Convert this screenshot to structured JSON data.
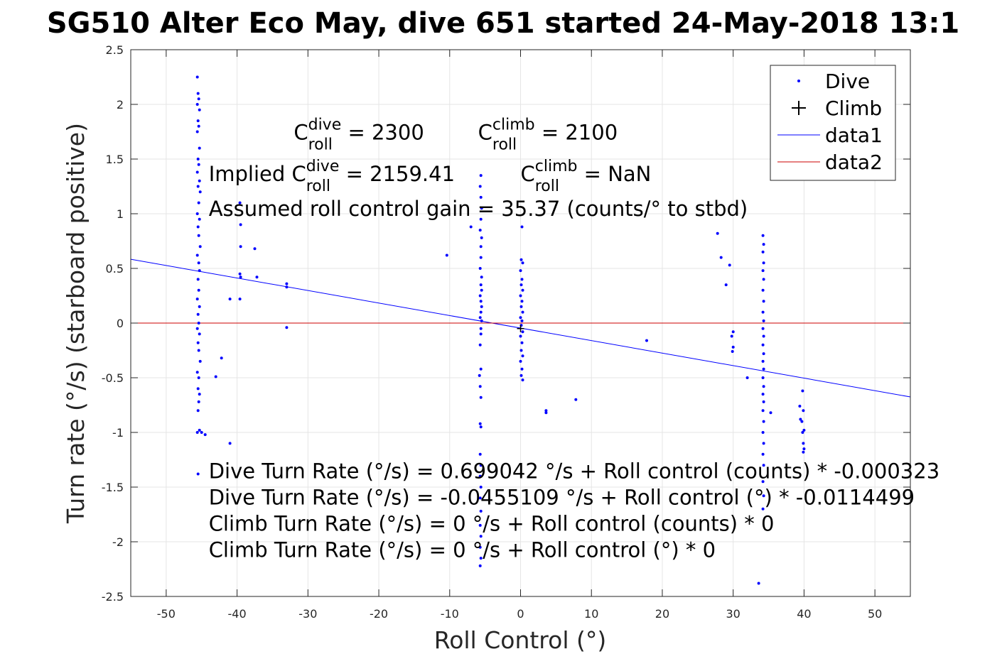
{
  "chart_data": {
    "type": "scatter",
    "title": "SG510 Alter Eco May, dive 651 started 24-May-2018 13:1",
    "xlabel": "Roll Control (°)",
    "ylabel": "Turn rate (°/s) (starboard positive)",
    "xlim": [
      -55,
      55
    ],
    "ylim": [
      -2.5,
      2.5
    ],
    "xticks": [
      -50,
      -40,
      -30,
      -20,
      -10,
      0,
      10,
      20,
      30,
      40,
      50
    ],
    "yticks": [
      -2.5,
      -2,
      -1.5,
      -1,
      -0.5,
      0,
      0.5,
      1,
      1.5,
      2,
      2.5
    ],
    "xtick_labels": [
      "-50",
      "-40",
      "-30",
      "-20",
      "-10",
      "0",
      "10",
      "20",
      "30",
      "40",
      "50"
    ],
    "ytick_labels": [
      "-2.5",
      "-2",
      "-1.5",
      "-1",
      "-0.5",
      "0",
      "0.5",
      "1",
      "1.5",
      "2",
      "2.5"
    ],
    "grid": true,
    "legend_position": "top-right",
    "legend": [
      {
        "label": "Dive",
        "marker": "dot",
        "color": "#0000ff"
      },
      {
        "label": "Climb",
        "marker": "plus",
        "color": "#000000"
      },
      {
        "label": "data1",
        "marker": "line",
        "color": "#0000ff"
      },
      {
        "label": "data2",
        "marker": "line",
        "color": "#cc0000"
      }
    ],
    "series": [
      {
        "name": "Dive",
        "type": "scatter",
        "color": "#0000ff",
        "points": [
          [
            -45.6,
            2.25
          ],
          [
            -45.5,
            2.1
          ],
          [
            -45.4,
            2.05
          ],
          [
            -45.6,
            2.0
          ],
          [
            -45.3,
            1.95
          ],
          [
            -45.5,
            1.85
          ],
          [
            -45.4,
            1.8
          ],
          [
            -45.6,
            1.75
          ],
          [
            -45.3,
            1.6
          ],
          [
            -45.5,
            1.5
          ],
          [
            -45.4,
            1.45
          ],
          [
            -45.6,
            1.38
          ],
          [
            -45.3,
            1.3
          ],
          [
            -45.5,
            1.25
          ],
          [
            -45.2,
            1.2
          ],
          [
            -45.4,
            1.1
          ],
          [
            -45.6,
            1.0
          ],
          [
            -45.3,
            0.95
          ],
          [
            -45.5,
            0.88
          ],
          [
            -45.4,
            0.8
          ],
          [
            -45.2,
            0.7
          ],
          [
            -45.6,
            0.62
          ],
          [
            -45.4,
            0.55
          ],
          [
            -45.3,
            0.48
          ],
          [
            -45.5,
            0.4
          ],
          [
            -45.4,
            0.3
          ],
          [
            -45.6,
            0.22
          ],
          [
            -45.3,
            0.15
          ],
          [
            -45.5,
            0.08
          ],
          [
            -45.4,
            0.0
          ],
          [
            -45.6,
            -0.05
          ],
          [
            -45.3,
            -0.1
          ],
          [
            -45.5,
            -0.18
          ],
          [
            -45.4,
            -0.25
          ],
          [
            -45.2,
            -0.35
          ],
          [
            -45.6,
            -0.45
          ],
          [
            -45.4,
            -0.5
          ],
          [
            -45.5,
            -0.6
          ],
          [
            -45.3,
            -0.65
          ],
          [
            -45.4,
            -0.72
          ],
          [
            -45.5,
            -0.8
          ],
          [
            -45.6,
            -1.0
          ],
          [
            -45.3,
            -0.98
          ],
          [
            -45.0,
            -1.0
          ],
          [
            -44.5,
            -1.02
          ],
          [
            -45.5,
            -1.38
          ],
          [
            -42.2,
            -0.32
          ],
          [
            -43.0,
            -0.49
          ],
          [
            -41.0,
            0.22
          ],
          [
            -41.0,
            -1.1
          ],
          [
            -39.6,
            1.1
          ],
          [
            -39.5,
            0.9
          ],
          [
            -39.5,
            0.7
          ],
          [
            -39.6,
            0.45
          ],
          [
            -39.5,
            0.42
          ],
          [
            -39.6,
            0.22
          ],
          [
            -37.5,
            0.68
          ],
          [
            -37.2,
            0.42
          ],
          [
            -33.0,
            0.36
          ],
          [
            -33.0,
            0.33
          ],
          [
            -33.0,
            -0.04
          ],
          [
            -10.4,
            0.62
          ],
          [
            -7.0,
            0.88
          ],
          [
            -5.6,
            1.35
          ],
          [
            -5.7,
            1.25
          ],
          [
            -5.6,
            1.15
          ],
          [
            -5.5,
            1.05
          ],
          [
            -5.6,
            0.95
          ],
          [
            -5.7,
            0.85
          ],
          [
            -5.5,
            0.78
          ],
          [
            -5.6,
            0.7
          ],
          [
            -5.6,
            0.6
          ],
          [
            -5.7,
            0.5
          ],
          [
            -5.5,
            0.42
          ],
          [
            -5.6,
            0.35
          ],
          [
            -5.5,
            0.3
          ],
          [
            -5.7,
            0.25
          ],
          [
            -5.6,
            0.2
          ],
          [
            -5.5,
            0.15
          ],
          [
            -5.6,
            0.1
          ],
          [
            -5.7,
            0.05
          ],
          [
            -5.5,
            0.02
          ],
          [
            -5.6,
            -0.05
          ],
          [
            -5.6,
            -0.1
          ],
          [
            -5.7,
            -0.2
          ],
          [
            -5.6,
            -0.42
          ],
          [
            -5.8,
            -0.48
          ],
          [
            -5.7,
            -0.58
          ],
          [
            -5.6,
            -0.68
          ],
          [
            -5.7,
            -0.92
          ],
          [
            -5.6,
            -0.95
          ],
          [
            -5.7,
            -1.2
          ],
          [
            -5.6,
            -1.3
          ],
          [
            -5.7,
            -1.4
          ],
          [
            -5.6,
            -1.5
          ],
          [
            -5.7,
            -1.6
          ],
          [
            -5.6,
            -1.72
          ],
          [
            -5.7,
            -1.85
          ],
          [
            -5.6,
            -1.95
          ],
          [
            -5.7,
            -2.05
          ],
          [
            -5.6,
            -2.15
          ],
          [
            -5.7,
            -2.22
          ],
          [
            0.2,
            0.88
          ],
          [
            0.1,
            0.58
          ],
          [
            0.3,
            0.55
          ],
          [
            0.0,
            0.48
          ],
          [
            0.2,
            0.4
          ],
          [
            0.1,
            0.35
          ],
          [
            0.3,
            0.3
          ],
          [
            0.0,
            0.25
          ],
          [
            0.2,
            0.2
          ],
          [
            0.1,
            0.15
          ],
          [
            0.3,
            0.1
          ],
          [
            0.0,
            0.05
          ],
          [
            0.2,
            0.02
          ],
          [
            0.1,
            -0.02
          ],
          [
            0.3,
            -0.08
          ],
          [
            0.0,
            -0.12
          ],
          [
            0.2,
            -0.18
          ],
          [
            0.1,
            -0.25
          ],
          [
            0.3,
            -0.3
          ],
          [
            0.0,
            -0.35
          ],
          [
            0.2,
            -0.42
          ],
          [
            0.1,
            -0.48
          ],
          [
            0.3,
            -0.52
          ],
          [
            3.6,
            -0.8
          ],
          [
            3.6,
            -0.82
          ],
          [
            7.8,
            -0.7
          ],
          [
            17.8,
            -0.16
          ],
          [
            27.8,
            0.82
          ],
          [
            28.3,
            0.6
          ],
          [
            29.5,
            0.53
          ],
          [
            29.0,
            0.35
          ],
          [
            30.0,
            -0.08
          ],
          [
            29.8,
            -0.12
          ],
          [
            30.0,
            -0.22
          ],
          [
            29.9,
            -0.26
          ],
          [
            32.0,
            -0.5
          ],
          [
            34.2,
            0.8
          ],
          [
            34.3,
            0.72
          ],
          [
            34.2,
            0.65
          ],
          [
            34.3,
            0.55
          ],
          [
            34.2,
            0.48
          ],
          [
            34.3,
            0.4
          ],
          [
            34.2,
            0.3
          ],
          [
            34.3,
            0.2
          ],
          [
            34.2,
            0.1
          ],
          [
            34.3,
            0.02
          ],
          [
            34.2,
            -0.05
          ],
          [
            34.3,
            -0.12
          ],
          [
            34.2,
            -0.2
          ],
          [
            34.3,
            -0.28
          ],
          [
            34.2,
            -0.35
          ],
          [
            34.3,
            -0.42
          ],
          [
            34.2,
            -0.5
          ],
          [
            34.3,
            -0.58
          ],
          [
            34.2,
            -0.65
          ],
          [
            34.3,
            -0.72
          ],
          [
            34.2,
            -0.8
          ],
          [
            34.3,
            -0.9
          ],
          [
            34.2,
            -1.0
          ],
          [
            34.3,
            -1.1
          ],
          [
            34.2,
            -1.2
          ],
          [
            34.3,
            -1.3
          ],
          [
            34.2,
            -1.45
          ],
          [
            34.3,
            -1.58
          ],
          [
            34.2,
            -1.7
          ],
          [
            33.6,
            -2.38
          ],
          [
            35.3,
            -0.82
          ],
          [
            39.8,
            -0.62
          ],
          [
            39.4,
            -0.76
          ],
          [
            39.9,
            -0.8
          ],
          [
            39.5,
            -0.88
          ],
          [
            39.7,
            -0.9
          ],
          [
            40.0,
            -0.98
          ],
          [
            39.8,
            -1.0
          ],
          [
            39.9,
            -1.1
          ],
          [
            40.0,
            -1.15
          ],
          [
            39.9,
            -1.18
          ]
        ]
      },
      {
        "name": "Climb",
        "type": "scatter",
        "color": "#000000",
        "points": [
          [
            0.0,
            -0.05
          ]
        ]
      },
      {
        "name": "data1",
        "type": "line",
        "color": "#0000ff",
        "points": [
          [
            -55,
            0.584
          ],
          [
            55,
            -0.675
          ]
        ]
      },
      {
        "name": "data2",
        "type": "line",
        "color": "#cc0000",
        "points": [
          [
            -55,
            0
          ],
          [
            55,
            0
          ]
        ]
      }
    ],
    "annotations": [
      {
        "id": "c_dive",
        "x": -32,
        "y": 1.68,
        "lines": [
          {
            "pre": "C",
            "sup": "dive",
            "sub": "roll",
            "post": " = 2300"
          }
        ]
      },
      {
        "id": "c_climb",
        "x": -6,
        "y": 1.68,
        "lines": [
          {
            "pre": "C",
            "sup": "climb",
            "sub": "roll",
            "post": " = 2100"
          }
        ]
      },
      {
        "id": "implied",
        "x": -44,
        "y": 1.3,
        "lines": [
          {
            "pre": "Implied C",
            "sup": "dive",
            "sub": "roll",
            "post": " = 2159.41"
          }
        ]
      },
      {
        "id": "implied_climb",
        "x": 0,
        "y": 1.3,
        "lines": [
          {
            "pre": "C",
            "sup": "climb",
            "sub": "roll",
            "post": " = NaN"
          }
        ]
      }
    ],
    "text_annotations": [
      {
        "x": -44,
        "y": 0.98,
        "text": "Assumed roll control gain = 35.37 (counts/° to stbd)"
      },
      {
        "x": -44,
        "y": -1.42,
        "text": "Dive Turn Rate (°/s) = 0.699042 °/s + Roll control (counts) * -0.000323"
      },
      {
        "x": -44,
        "y": -1.66,
        "text": "Dive Turn Rate (°/s) = -0.0455109 °/s + Roll control (°) * -0.0114499"
      },
      {
        "x": -44,
        "y": -1.9,
        "text": "Climb Turn Rate (°/s) = 0 °/s + Roll control (counts) * 0"
      },
      {
        "x": -44,
        "y": -2.14,
        "text": "Climb Turn Rate (°/s) = 0 °/s + Roll control (°) * 0"
      }
    ]
  }
}
